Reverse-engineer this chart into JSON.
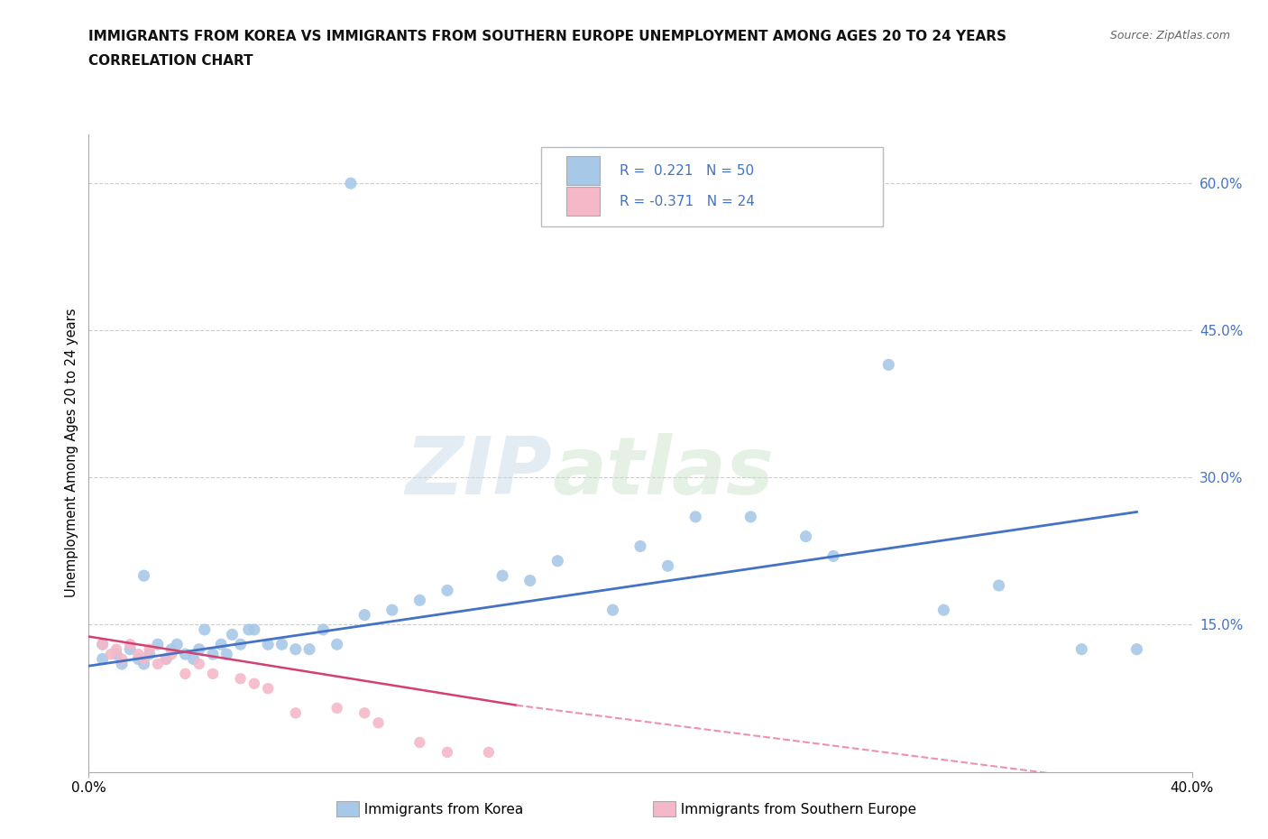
{
  "title_line1": "IMMIGRANTS FROM KOREA VS IMMIGRANTS FROM SOUTHERN EUROPE UNEMPLOYMENT AMONG AGES 20 TO 24 YEARS",
  "title_line2": "CORRELATION CHART",
  "source_text": "Source: ZipAtlas.com",
  "ylabel": "Unemployment Among Ages 20 to 24 years",
  "xlim": [
    0.0,
    0.4
  ],
  "ylim": [
    0.0,
    0.65
  ],
  "y_tick_vals_right": [
    0.15,
    0.3,
    0.45,
    0.6
  ],
  "watermark_zip": "ZIP",
  "watermark_atlas": "atlas",
  "korea_color": "#a8c8e8",
  "southern_europe_color": "#f4b8c8",
  "korea_line_color": "#4472c4",
  "southern_europe_line_solid_color": "#d44070",
  "southern_europe_line_dash_color": "#f090b0",
  "korea_R": 0.221,
  "korea_N": 50,
  "southern_europe_R": -0.371,
  "southern_europe_N": 24,
  "korea_scatter_x": [
    0.005,
    0.005,
    0.01,
    0.012,
    0.015,
    0.018,
    0.02,
    0.02,
    0.022,
    0.025,
    0.028,
    0.03,
    0.032,
    0.035,
    0.038,
    0.04,
    0.042,
    0.045,
    0.048,
    0.05,
    0.052,
    0.055,
    0.058,
    0.06,
    0.065,
    0.07,
    0.075,
    0.08,
    0.085,
    0.09,
    0.095,
    0.1,
    0.11,
    0.12,
    0.13,
    0.15,
    0.16,
    0.17,
    0.19,
    0.2,
    0.21,
    0.22,
    0.24,
    0.26,
    0.27,
    0.29,
    0.31,
    0.33,
    0.36,
    0.38
  ],
  "korea_scatter_y": [
    0.115,
    0.13,
    0.12,
    0.11,
    0.125,
    0.115,
    0.11,
    0.2,
    0.12,
    0.13,
    0.115,
    0.125,
    0.13,
    0.12,
    0.115,
    0.125,
    0.145,
    0.12,
    0.13,
    0.12,
    0.14,
    0.13,
    0.145,
    0.145,
    0.13,
    0.13,
    0.125,
    0.125,
    0.145,
    0.13,
    0.6,
    0.16,
    0.165,
    0.175,
    0.185,
    0.2,
    0.195,
    0.215,
    0.165,
    0.23,
    0.21,
    0.26,
    0.26,
    0.24,
    0.22,
    0.415,
    0.165,
    0.19,
    0.125,
    0.125
  ],
  "southern_scatter_x": [
    0.005,
    0.008,
    0.01,
    0.012,
    0.015,
    0.018,
    0.02,
    0.022,
    0.025,
    0.028,
    0.03,
    0.035,
    0.04,
    0.045,
    0.055,
    0.06,
    0.065,
    0.075,
    0.09,
    0.1,
    0.105,
    0.12,
    0.13,
    0.145
  ],
  "southern_scatter_y": [
    0.13,
    0.12,
    0.125,
    0.115,
    0.13,
    0.12,
    0.115,
    0.125,
    0.11,
    0.115,
    0.12,
    0.1,
    0.11,
    0.1,
    0.095,
    0.09,
    0.085,
    0.06,
    0.065,
    0.06,
    0.05,
    0.03,
    0.02,
    0.02
  ],
  "korea_trend": [
    0.0,
    0.38,
    0.108,
    0.265
  ],
  "se_trend_solid": [
    0.0,
    0.155,
    0.138,
    0.068
  ],
  "se_trend_dash": [
    0.155,
    0.4,
    0.068,
    -0.02
  ],
  "background_color": "#ffffff",
  "grid_color": "#cccccc"
}
